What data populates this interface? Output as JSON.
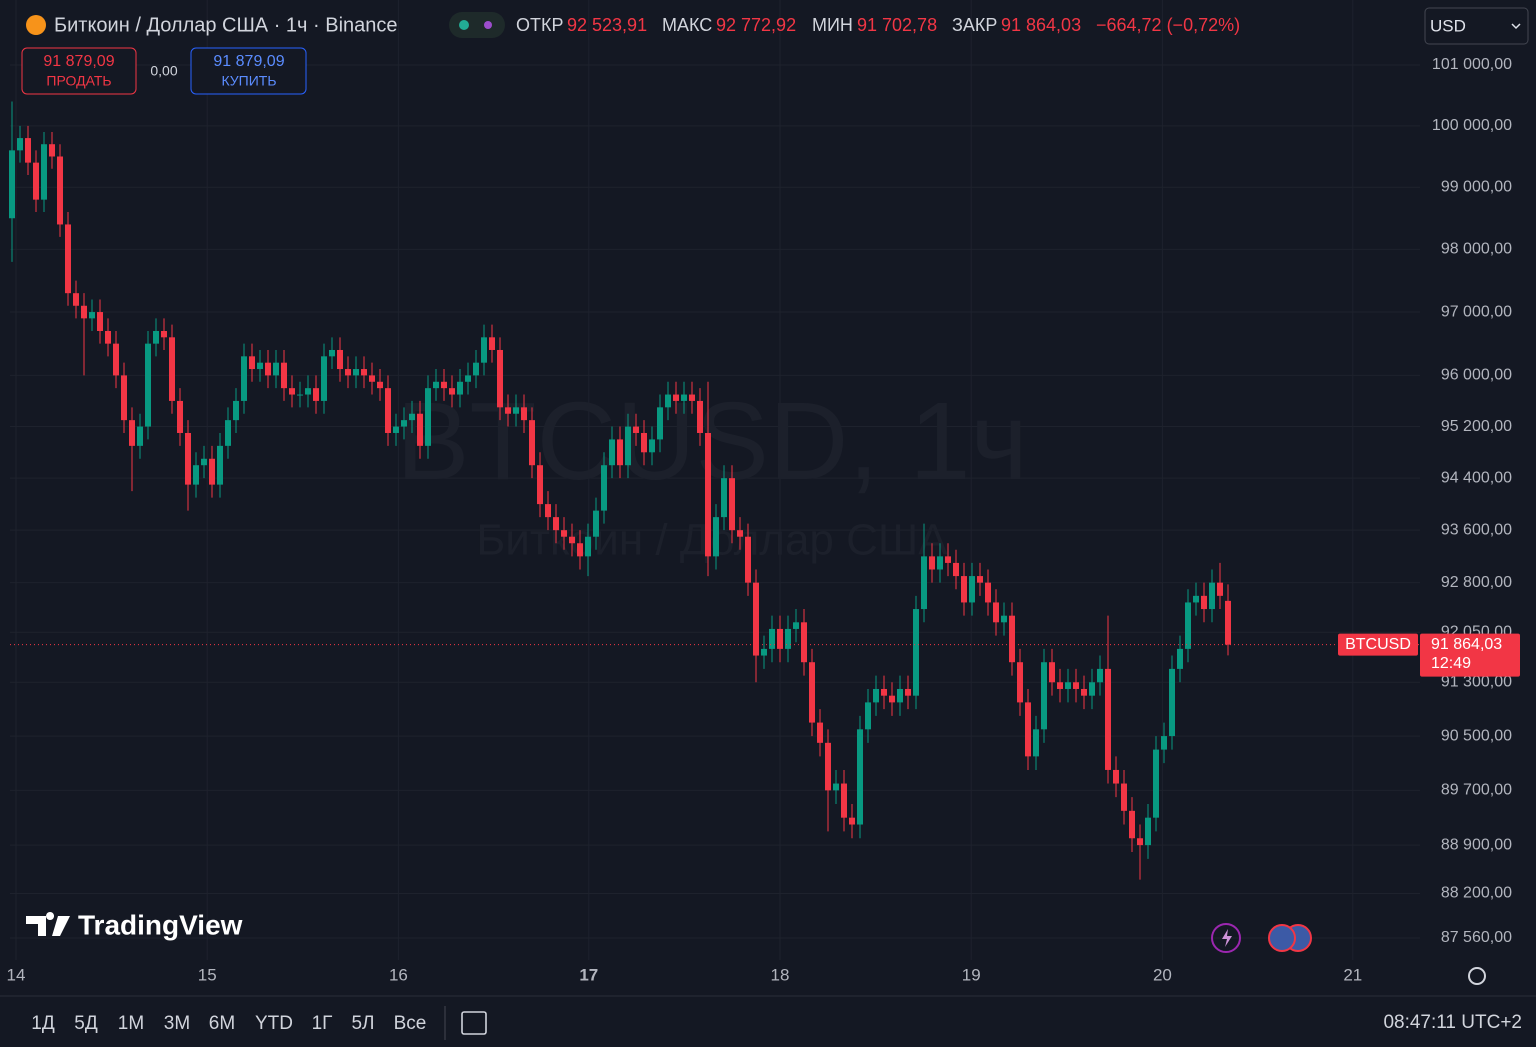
{
  "header": {
    "title": "Биткоин / Доллар США · 1ч · Binance",
    "ohlc": [
      {
        "label": "ОТКР",
        "value": "92 523,91"
      },
      {
        "label": "МАКС",
        "value": "92 772,92"
      },
      {
        "label": "МИН",
        "value": "91 702,78"
      },
      {
        "label": "ЗАКР",
        "value": "91 864,03"
      }
    ],
    "change": "−664,72 (−0,72%)",
    "currency": "USD"
  },
  "trade": {
    "sell_price": "91 879,09",
    "sell_label": "ПРОДАТЬ",
    "spread": "0,00",
    "buy_price": "91 879,09",
    "buy_label": "КУПИТЬ"
  },
  "chart_data": {
    "type": "candlestick",
    "log": true,
    "grid": true,
    "up_color": "#089981",
    "down_color": "#f23645",
    "watermark": "BTCUSD, 1ч",
    "watermark_subtitle": "Биткоин / Доллар США",
    "open": [
      98500,
      99600,
      99800,
      99400,
      98800,
      99700,
      99500,
      98400,
      97300,
      97100,
      96900,
      97000,
      96700,
      96500,
      96000,
      95300,
      94900,
      95200,
      96500,
      96700,
      96600,
      95600,
      95100,
      94300,
      94600,
      94700,
      94300,
      94900,
      95300,
      95600,
      96300,
      96100,
      96200,
      96000,
      96200,
      95800,
      95700,
      95700,
      95800,
      95600,
      96300,
      96400,
      96100,
      96000,
      96100,
      96000,
      95900,
      95800,
      95100,
      95200,
      95300,
      95400,
      94900,
      95800,
      95900,
      95800,
      95700,
      95900,
      96000,
      96200,
      96600,
      96400,
      95500,
      95400,
      95500,
      95300,
      94600,
      94000,
      93800,
      93600,
      93500,
      93400,
      93200,
      93500,
      93900,
      94600,
      95000,
      94600,
      95200,
      95100,
      94800,
      95000,
      95500,
      95700,
      95600,
      95700,
      95600,
      95100,
      93200,
      93800,
      94400,
      93600,
      93500,
      92800,
      91700,
      91800,
      92100,
      91800,
      92100,
      92200,
      91600,
      90700,
      90400,
      89700,
      89800,
      89300,
      89200,
      90600,
      91000,
      91200,
      91100,
      91000,
      91200,
      91100,
      92400,
      93200,
      93000,
      93200,
      93100,
      92900,
      92500,
      92900,
      92800,
      92500,
      92200,
      92300,
      91600,
      91000,
      90200,
      90600,
      91600,
      91300,
      91200,
      91300,
      91200,
      91100,
      91300,
      91500,
      90000,
      89800,
      89400,
      89000,
      88900,
      89300,
      90300,
      90500,
      91500,
      91800,
      92500,
      92600,
      92400,
      92800,
      92523.91
    ],
    "high": [
      100400,
      100000,
      100000,
      99600,
      99900,
      99900,
      99700,
      98600,
      97500,
      97300,
      97200,
      97200,
      96900,
      96700,
      96200,
      95500,
      95400,
      96700,
      96900,
      96900,
      96800,
      95800,
      95300,
      94800,
      94900,
      94900,
      95100,
      95500,
      95800,
      96500,
      96500,
      96400,
      96400,
      96400,
      96400,
      96000,
      95900,
      96000,
      96000,
      96500,
      96600,
      96600,
      96300,
      96300,
      96300,
      96200,
      96100,
      96000,
      95400,
      95500,
      95600,
      95600,
      96000,
      96100,
      96100,
      96000,
      96100,
      96200,
      96400,
      96800,
      96800,
      96600,
      95700,
      95700,
      95700,
      95500,
      94800,
      94200,
      94000,
      93800,
      93700,
      93600,
      93700,
      94100,
      94800,
      95200,
      95200,
      95400,
      95400,
      95300,
      95200,
      95700,
      95900,
      95900,
      95900,
      95900,
      95800,
      95900,
      94000,
      94600,
      94600,
      93800,
      93700,
      93000,
      92000,
      92300,
      92300,
      92300,
      92400,
      92400,
      91800,
      90900,
      90600,
      90000,
      90000,
      89500,
      90800,
      91200,
      91400,
      91400,
      91300,
      91400,
      91400,
      92600,
      93700,
      93400,
      93400,
      93400,
      93300,
      93100,
      93100,
      93100,
      93000,
      92700,
      92500,
      92500,
      91800,
      91200,
      90800,
      91800,
      91800,
      91500,
      91500,
      91500,
      91400,
      91500,
      91700,
      92300,
      90200,
      90000,
      89600,
      89200,
      89500,
      90500,
      90700,
      91700,
      92000,
      92700,
      92800,
      92800,
      93000,
      93100,
      92772.92
    ],
    "low": [
      97800,
      99400,
      99200,
      98600,
      98600,
      99300,
      98200,
      97100,
      96900,
      96000,
      96700,
      96500,
      96300,
      95800,
      95100,
      94200,
      94700,
      95000,
      96300,
      96400,
      95400,
      94900,
      93900,
      94100,
      94400,
      94100,
      94100,
      94700,
      95100,
      95400,
      95900,
      95900,
      95800,
      95800,
      95600,
      95500,
      95500,
      95500,
      95400,
      95400,
      96100,
      95900,
      95800,
      95800,
      95800,
      95700,
      95600,
      94900,
      94900,
      95000,
      95100,
      94700,
      94700,
      95600,
      95600,
      95500,
      95500,
      95700,
      95800,
      96000,
      96200,
      95300,
      95200,
      95200,
      95100,
      94400,
      93800,
      93600,
      93400,
      93300,
      93200,
      93000,
      92900,
      93300,
      93700,
      94400,
      94400,
      94400,
      94900,
      94600,
      94600,
      94800,
      95300,
      95400,
      95400,
      95400,
      94900,
      92900,
      93000,
      93600,
      93400,
      93300,
      92600,
      91300,
      91500,
      91600,
      91600,
      91600,
      91900,
      91400,
      90500,
      90200,
      89100,
      89500,
      89100,
      89000,
      89000,
      90400,
      90800,
      90900,
      90800,
      90800,
      90900,
      90900,
      92200,
      92800,
      92800,
      92900,
      92700,
      92300,
      92300,
      92600,
      92300,
      92000,
      92000,
      91400,
      90800,
      90000,
      90000,
      90400,
      91100,
      91000,
      91000,
      91000,
      90900,
      90900,
      91100,
      89800,
      89600,
      89200,
      88800,
      88400,
      88700,
      89100,
      90100,
      90300,
      91300,
      91600,
      92300,
      92200,
      92200,
      92400,
      91702.78
    ],
    "close": [
      99600,
      99800,
      99400,
      98800,
      99700,
      99500,
      98400,
      97300,
      97100,
      96900,
      97000,
      96700,
      96500,
      96000,
      95300,
      94900,
      95200,
      96500,
      96700,
      96600,
      95600,
      95100,
      94300,
      94600,
      94700,
      94300,
      94900,
      95300,
      95600,
      96300,
      96100,
      96200,
      96000,
      96200,
      95800,
      95700,
      95700,
      95800,
      95600,
      96300,
      96400,
      96100,
      96000,
      96100,
      96000,
      95900,
      95800,
      95100,
      95200,
      95300,
      95400,
      94900,
      95800,
      95900,
      95800,
      95700,
      95900,
      96000,
      96200,
      96600,
      96400,
      95500,
      95400,
      95500,
      95300,
      94600,
      94000,
      93800,
      93600,
      93500,
      93400,
      93200,
      93500,
      93900,
      94600,
      95000,
      94600,
      95200,
      95100,
      94800,
      95000,
      95500,
      95700,
      95600,
      95700,
      95600,
      95100,
      93200,
      93800,
      94400,
      93600,
      93500,
      92800,
      91700,
      91800,
      92100,
      91800,
      92100,
      92200,
      91600,
      90700,
      90400,
      89700,
      89800,
      89300,
      89200,
      90600,
      91000,
      91200,
      91100,
      91000,
      91200,
      91100,
      92400,
      93200,
      93000,
      93200,
      93100,
      92900,
      92500,
      92900,
      92800,
      92500,
      92200,
      92300,
      91600,
      91000,
      90200,
      90600,
      91600,
      91300,
      91200,
      91300,
      91200,
      91100,
      91300,
      91500,
      90000,
      89800,
      89400,
      89000,
      88900,
      89300,
      90300,
      90500,
      91500,
      91800,
      92500,
      92600,
      92400,
      92800,
      92600,
      91864.03
    ],
    "ylim": [
      87245,
      102080
    ],
    "yticks": [
      {
        "value": 87560,
        "label": "87 560,00"
      },
      {
        "value": 88200,
        "label": "88 200,00"
      },
      {
        "value": 88900,
        "label": "88 900,00"
      },
      {
        "value": 89700,
        "label": "89 700,00"
      },
      {
        "value": 90500,
        "label": "90 500,00"
      },
      {
        "value": 91300,
        "label": "91 300,00"
      },
      {
        "value": 92050,
        "label": "92 050,00"
      },
      {
        "value": 92800,
        "label": "92 800,00"
      },
      {
        "value": 93600,
        "label": "93 600,00"
      },
      {
        "value": 94400,
        "label": "94 400,00"
      },
      {
        "value": 95200,
        "label": "95 200,00"
      },
      {
        "value": 96000,
        "label": "96 000,00"
      },
      {
        "value": 97000,
        "label": "97 000,00"
      },
      {
        "value": 98000,
        "label": "98 000,00"
      },
      {
        "value": 99000,
        "label": "99 000,00"
      },
      {
        "value": 100000,
        "label": "100 000,00"
      },
      {
        "value": 101000,
        "label": "101 000,00"
      }
    ],
    "xlim": [
      -1.5,
      176
    ],
    "xticks": [
      {
        "value": 0.5,
        "label": "14"
      },
      {
        "value": 24.4,
        "label": "15"
      },
      {
        "value": 48.3,
        "label": "16"
      },
      {
        "value": 72.1,
        "label": "17"
      },
      {
        "value": 96,
        "label": "18"
      },
      {
        "value": 119.9,
        "label": "19"
      },
      {
        "value": 143.8,
        "label": "20"
      },
      {
        "value": 167.6,
        "label": "21"
      }
    ],
    "price_tag": {
      "symbol": "BTCUSD",
      "value": 91864.03,
      "label": "91 864,03",
      "countdown": "12:49"
    }
  },
  "footer": {
    "ranges": [
      "1Д",
      "5Д",
      "1М",
      "3М",
      "6М",
      "YTD",
      "1Г",
      "5Л",
      "Все"
    ],
    "clock": "08:47:11 UTC+2",
    "brand": "TradingView"
  }
}
